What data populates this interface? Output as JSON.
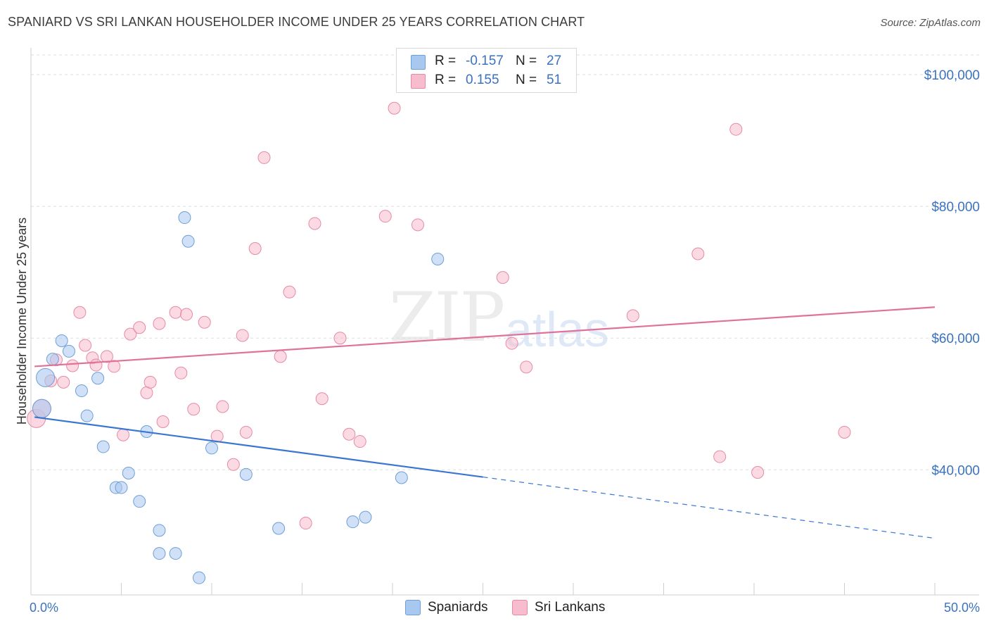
{
  "chart_data": {
    "type": "scatter",
    "title": "SPANIARD VS SRI LANKAN HOUSEHOLDER INCOME UNDER 25 YEARS CORRELATION CHART",
    "source": "Source: ZipAtlas.com",
    "xlabel": "",
    "ylabel": "Householder Income Under 25 years",
    "xlim": [
      0,
      50
    ],
    "ylim": [
      21000,
      103000
    ],
    "x_tick_labels": [
      "0.0%",
      "50.0%"
    ],
    "y_ticks": [
      40000,
      60000,
      80000,
      100000
    ],
    "y_tick_labels": [
      "$40,000",
      "$60,000",
      "$80,000",
      "$100,000"
    ],
    "watermark": [
      "ZIP",
      "atlas"
    ],
    "legend": [
      {
        "name": "Spaniards",
        "r_label": "R =",
        "r_value": "-0.157",
        "n_label": "N =",
        "n_value": "27",
        "color": "#a9c8f0",
        "stroke": "#6d9fd8"
      },
      {
        "name": "Sri Lankans",
        "r_label": "R =",
        "r_value": "0.155",
        "n_label": "N =",
        "n_value": "51",
        "color": "#f7bccd",
        "stroke": "#e68aa5"
      }
    ],
    "series": [
      {
        "name": "Spaniards",
        "points": [
          [
            0.6,
            49300
          ],
          [
            0.8,
            54000
          ],
          [
            1.2,
            56800
          ],
          [
            1.7,
            59600
          ],
          [
            2.1,
            58000
          ],
          [
            2.8,
            52000
          ],
          [
            3.1,
            48200
          ],
          [
            3.7,
            53900
          ],
          [
            4.0,
            43500
          ],
          [
            5.4,
            39500
          ],
          [
            4.7,
            37300
          ],
          [
            5.0,
            37300
          ],
          [
            6.0,
            35200
          ],
          [
            6.4,
            45800
          ],
          [
            7.1,
            30800
          ],
          [
            7.1,
            27300
          ],
          [
            8.0,
            27300
          ],
          [
            8.5,
            78300
          ],
          [
            8.7,
            74700
          ],
          [
            9.3,
            23600
          ],
          [
            10.0,
            43300
          ],
          [
            11.9,
            39300
          ],
          [
            13.7,
            31100
          ],
          [
            17.8,
            32100
          ],
          [
            18.5,
            32800
          ],
          [
            20.5,
            38800
          ],
          [
            22.5,
            72000
          ]
        ],
        "trend_solid": [
          [
            0.2,
            48000
          ],
          [
            25.0,
            38900
          ]
        ],
        "trend_dashed": [
          [
            25.0,
            38900
          ],
          [
            50.0,
            29600
          ]
        ]
      },
      {
        "name": "Sri Lankans",
        "points": [
          [
            0.3,
            47800
          ],
          [
            0.6,
            49300
          ],
          [
            1.1,
            53500
          ],
          [
            1.4,
            56700
          ],
          [
            1.8,
            53300
          ],
          [
            2.3,
            55800
          ],
          [
            2.7,
            63900
          ],
          [
            3.0,
            58900
          ],
          [
            3.4,
            57000
          ],
          [
            3.6,
            55900
          ],
          [
            4.2,
            57200
          ],
          [
            4.6,
            55700
          ],
          [
            5.1,
            45300
          ],
          [
            5.5,
            60600
          ],
          [
            6.0,
            61600
          ],
          [
            6.4,
            51700
          ],
          [
            6.6,
            53300
          ],
          [
            7.1,
            62200
          ],
          [
            7.3,
            47300
          ],
          [
            8.0,
            63900
          ],
          [
            8.3,
            54700
          ],
          [
            8.6,
            63600
          ],
          [
            9.0,
            49200
          ],
          [
            9.6,
            62400
          ],
          [
            10.3,
            45100
          ],
          [
            10.6,
            49600
          ],
          [
            11.2,
            40800
          ],
          [
            11.7,
            60400
          ],
          [
            11.9,
            45700
          ],
          [
            12.4,
            73600
          ],
          [
            12.9,
            87400
          ],
          [
            13.8,
            57200
          ],
          [
            14.3,
            67000
          ],
          [
            15.2,
            31900
          ],
          [
            15.7,
            77400
          ],
          [
            16.1,
            50800
          ],
          [
            17.1,
            60000
          ],
          [
            17.6,
            45400
          ],
          [
            18.2,
            44300
          ],
          [
            19.6,
            78500
          ],
          [
            20.1,
            94900
          ],
          [
            21.4,
            77200
          ],
          [
            26.1,
            69200
          ],
          [
            26.6,
            59200
          ],
          [
            27.4,
            55600
          ],
          [
            33.3,
            63400
          ],
          [
            36.9,
            72800
          ],
          [
            38.1,
            42000
          ],
          [
            39.0,
            91700
          ],
          [
            40.2,
            39600
          ],
          [
            45.0,
            45700
          ]
        ],
        "trend_solid": [
          [
            0.2,
            55700
          ],
          [
            50.0,
            64700
          ]
        ]
      }
    ]
  }
}
